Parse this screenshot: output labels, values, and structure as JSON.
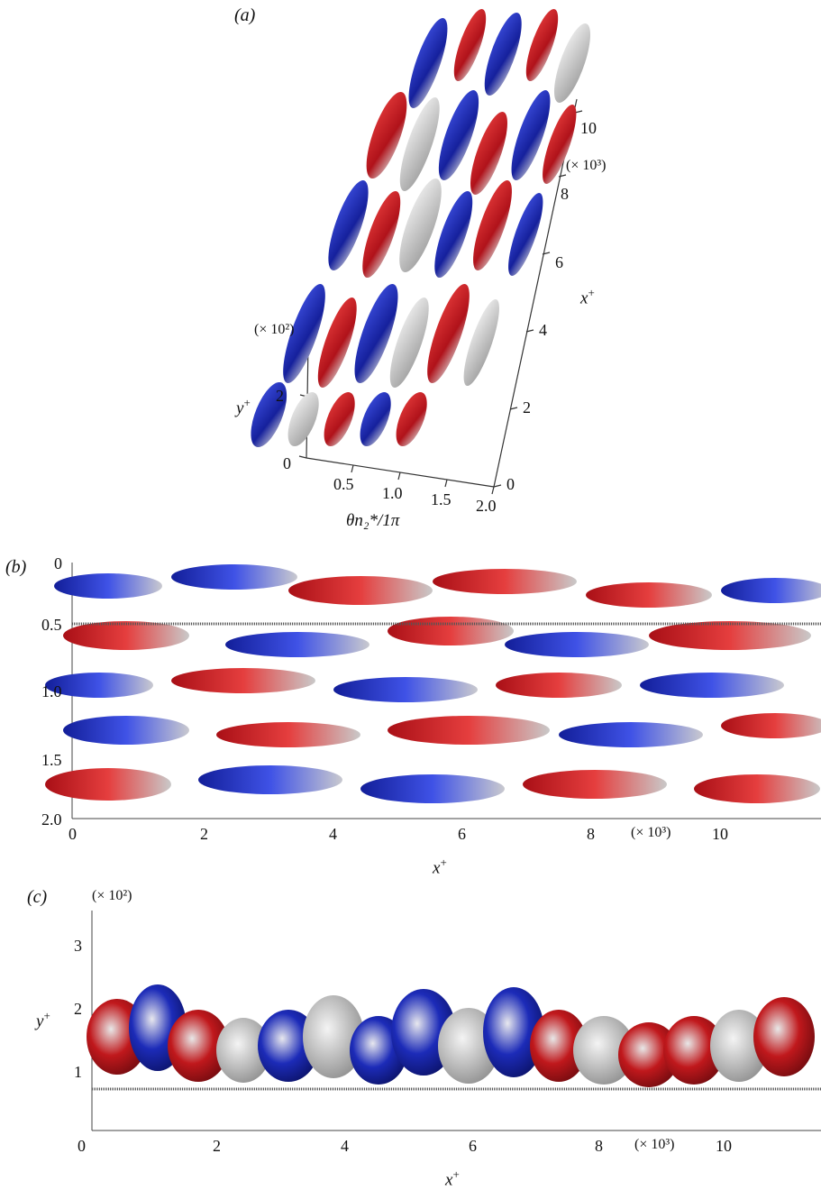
{
  "panel_a": {
    "label": "(a)",
    "x_axis_label": "x",
    "x_axis_sup": "+",
    "x_scale_note": "(× 10³)",
    "x_ticks": [
      "0",
      "2",
      "4",
      "6",
      "8",
      "10"
    ],
    "y_axis_label": "y",
    "y_axis_sup": "+",
    "y_scale_note": "(× 10²)",
    "y_ticks": [
      "0",
      "2"
    ],
    "theta_label": "θn₂*/1π",
    "theta_ticks": [
      "0.5",
      "1.0",
      "1.5",
      "2.0"
    ]
  },
  "panel_b": {
    "label": "(b)",
    "y_ticks": [
      "0",
      "0.5",
      "1.0",
      "1.5",
      "2.0"
    ],
    "x_ticks": [
      "0",
      "2",
      "4",
      "6",
      "8",
      "10"
    ],
    "x_scale_note": "(× 10³)",
    "x_axis_label": "x",
    "x_axis_sup": "+"
  },
  "panel_c": {
    "label": "(c)",
    "y_scale_note": "(× 10²)",
    "y_axis_label": "y",
    "y_axis_sup": "+",
    "y_ticks": [
      "1",
      "2",
      "3"
    ],
    "x_ticks": [
      "0",
      "2",
      "4",
      "6",
      "8",
      "10"
    ],
    "x_scale_note": "(× 10³)",
    "x_axis_label": "x",
    "x_axis_sup": "+"
  },
  "colors": {
    "positive": "#c0181c",
    "negative": "#1c2bb8",
    "neutral": "#c4c4c4"
  }
}
